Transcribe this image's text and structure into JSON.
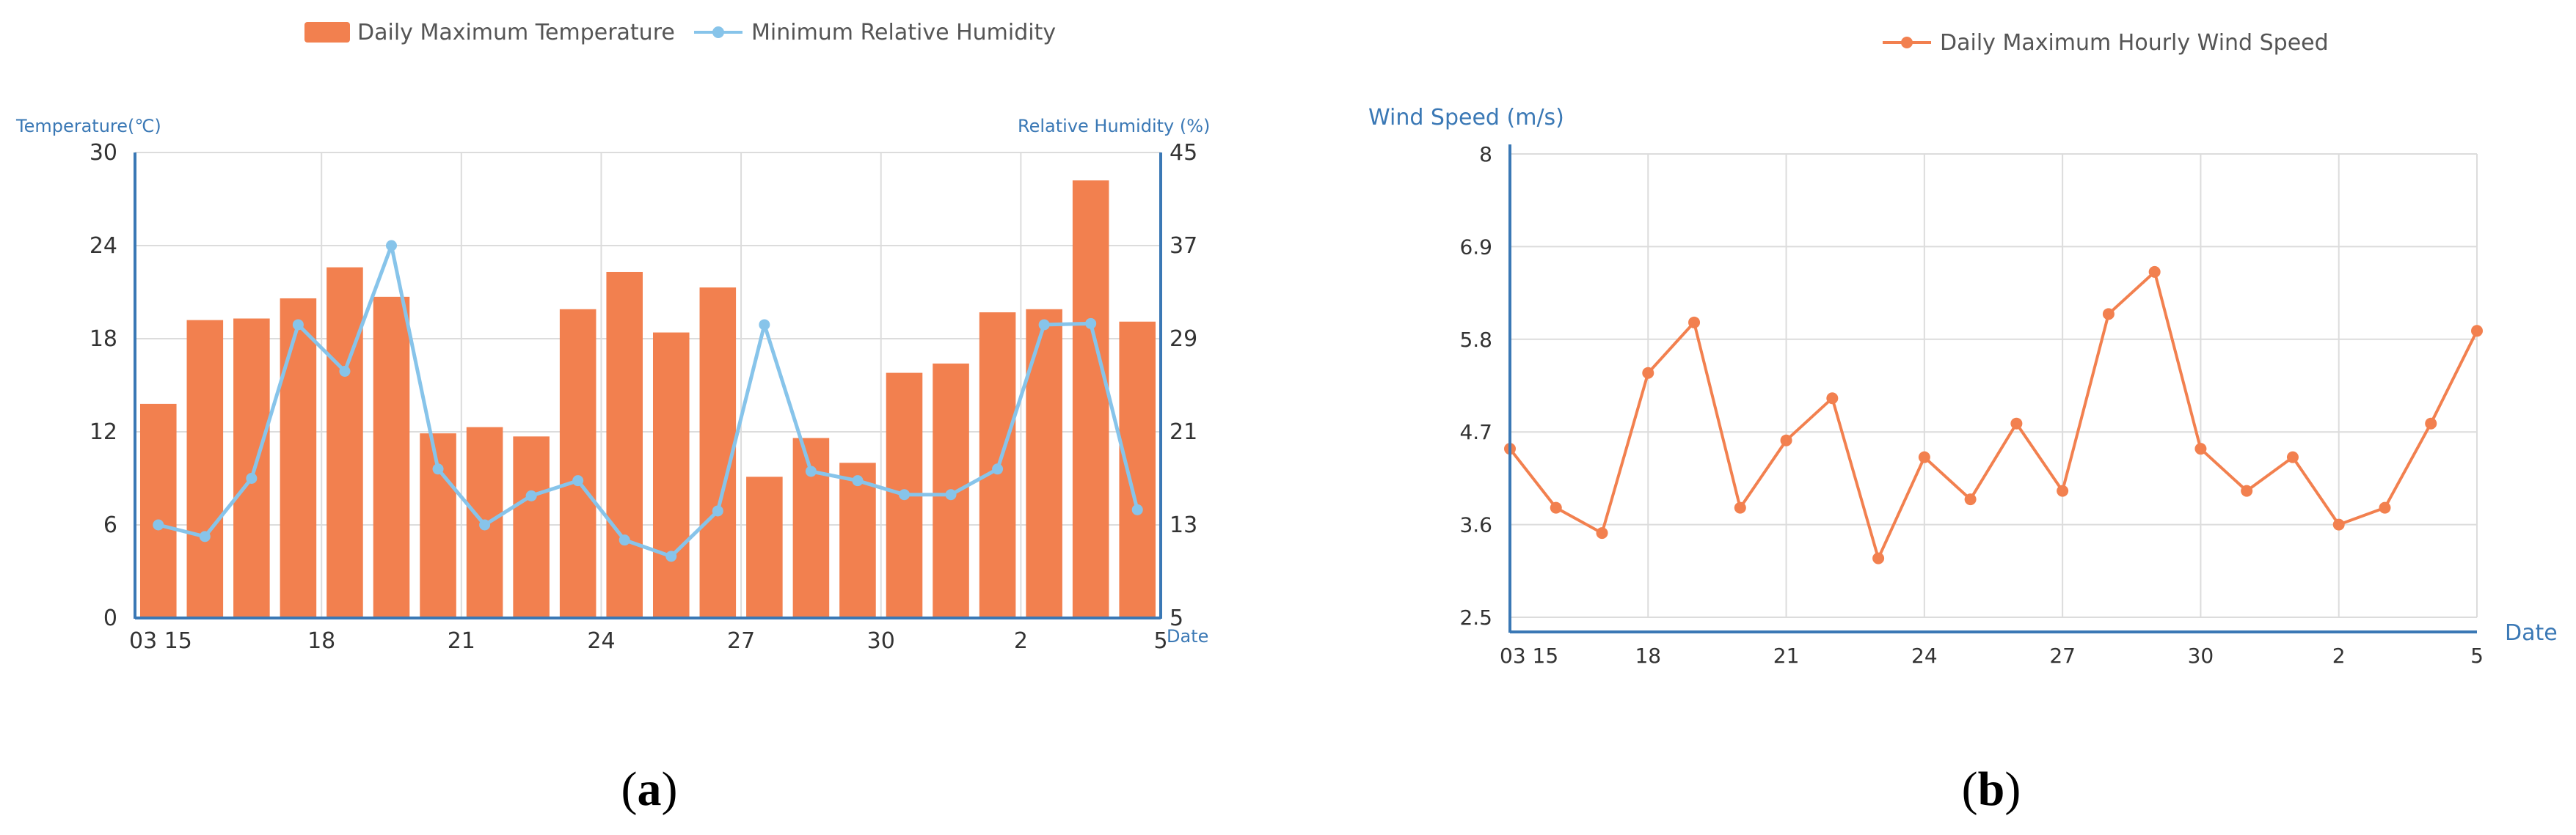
{
  "chart_data": [
    {
      "type": "bar+line",
      "panel_label": {
        "open": "(",
        "letter": "a",
        "close": ")"
      },
      "legend": [
        {
          "name": "Daily Maximum Temperature",
          "marker": "bar",
          "color": "#f2804f"
        },
        {
          "name": "Minimum Relative Humidity",
          "marker": "line",
          "color": "#87c4ea"
        }
      ],
      "ylabel_left": "Temperature(℃)",
      "ylabel_right": "Relative Humidity (%)",
      "xlabel": "Date",
      "x_ticks": [
        "03 15",
        "18",
        "21",
        "24",
        "27",
        "30",
        "2",
        "5"
      ],
      "x_tick_index": [
        1,
        4,
        7,
        10,
        13,
        16,
        19,
        22
      ],
      "y_left_ticks": [
        "30",
        "24",
        "18",
        "12",
        "6",
        "0"
      ],
      "y_right_ticks": [
        "45",
        "37",
        "29",
        "21",
        "13",
        "5"
      ],
      "ylim_left": [
        0,
        30
      ],
      "ylim_right": [
        5,
        45
      ],
      "series": [
        {
          "name": "Daily Maximum Temperature",
          "axis": "left",
          "values": [
            13.8,
            19.2,
            19.3,
            20.6,
            22.6,
            20.7,
            11.9,
            12.3,
            11.7,
            19.9,
            22.3,
            18.4,
            21.3,
            9.1,
            11.6,
            10.0,
            15.8,
            16.4,
            19.7,
            19.9,
            28.2,
            19.1
          ]
        },
        {
          "name": "Minimum Relative Humidity",
          "axis": "right",
          "values": [
            13.0,
            12.0,
            17.0,
            30.2,
            26.2,
            37.0,
            17.8,
            13.0,
            15.5,
            16.8,
            11.7,
            10.3,
            14.2,
            30.2,
            17.6,
            16.8,
            15.6,
            15.6,
            17.8,
            30.2,
            30.3,
            14.3
          ]
        }
      ]
    },
    {
      "type": "line",
      "panel_label": {
        "open": "(",
        "letter": "b",
        "close": ")"
      },
      "legend": [
        {
          "name": "Daily Maximum Hourly Wind Speed",
          "marker": "line",
          "color": "#f2804f"
        }
      ],
      "ylabel": "Wind Speed (m/s)",
      "xlabel": "Date",
      "x_ticks": [
        "03 15",
        "18",
        "21",
        "24",
        "27",
        "30",
        "2",
        "5"
      ],
      "x_tick_index": [
        0,
        3,
        6,
        9,
        12,
        15,
        18,
        21
      ],
      "y_ticks": [
        "8",
        "6.9",
        "5.8",
        "4.7",
        "3.6",
        "2.5"
      ],
      "ylim": [
        2.5,
        8
      ],
      "series": [
        {
          "name": "Daily Maximum Hourly Wind Speed",
          "values": [
            4.5,
            3.8,
            3.5,
            5.4,
            6.0,
            3.8,
            4.6,
            5.1,
            3.2,
            4.4,
            3.9,
            4.8,
            4.0,
            6.1,
            6.6,
            4.5,
            4.0,
            4.4,
            3.6,
            3.8,
            4.8,
            5.9
          ]
        }
      ]
    }
  ]
}
